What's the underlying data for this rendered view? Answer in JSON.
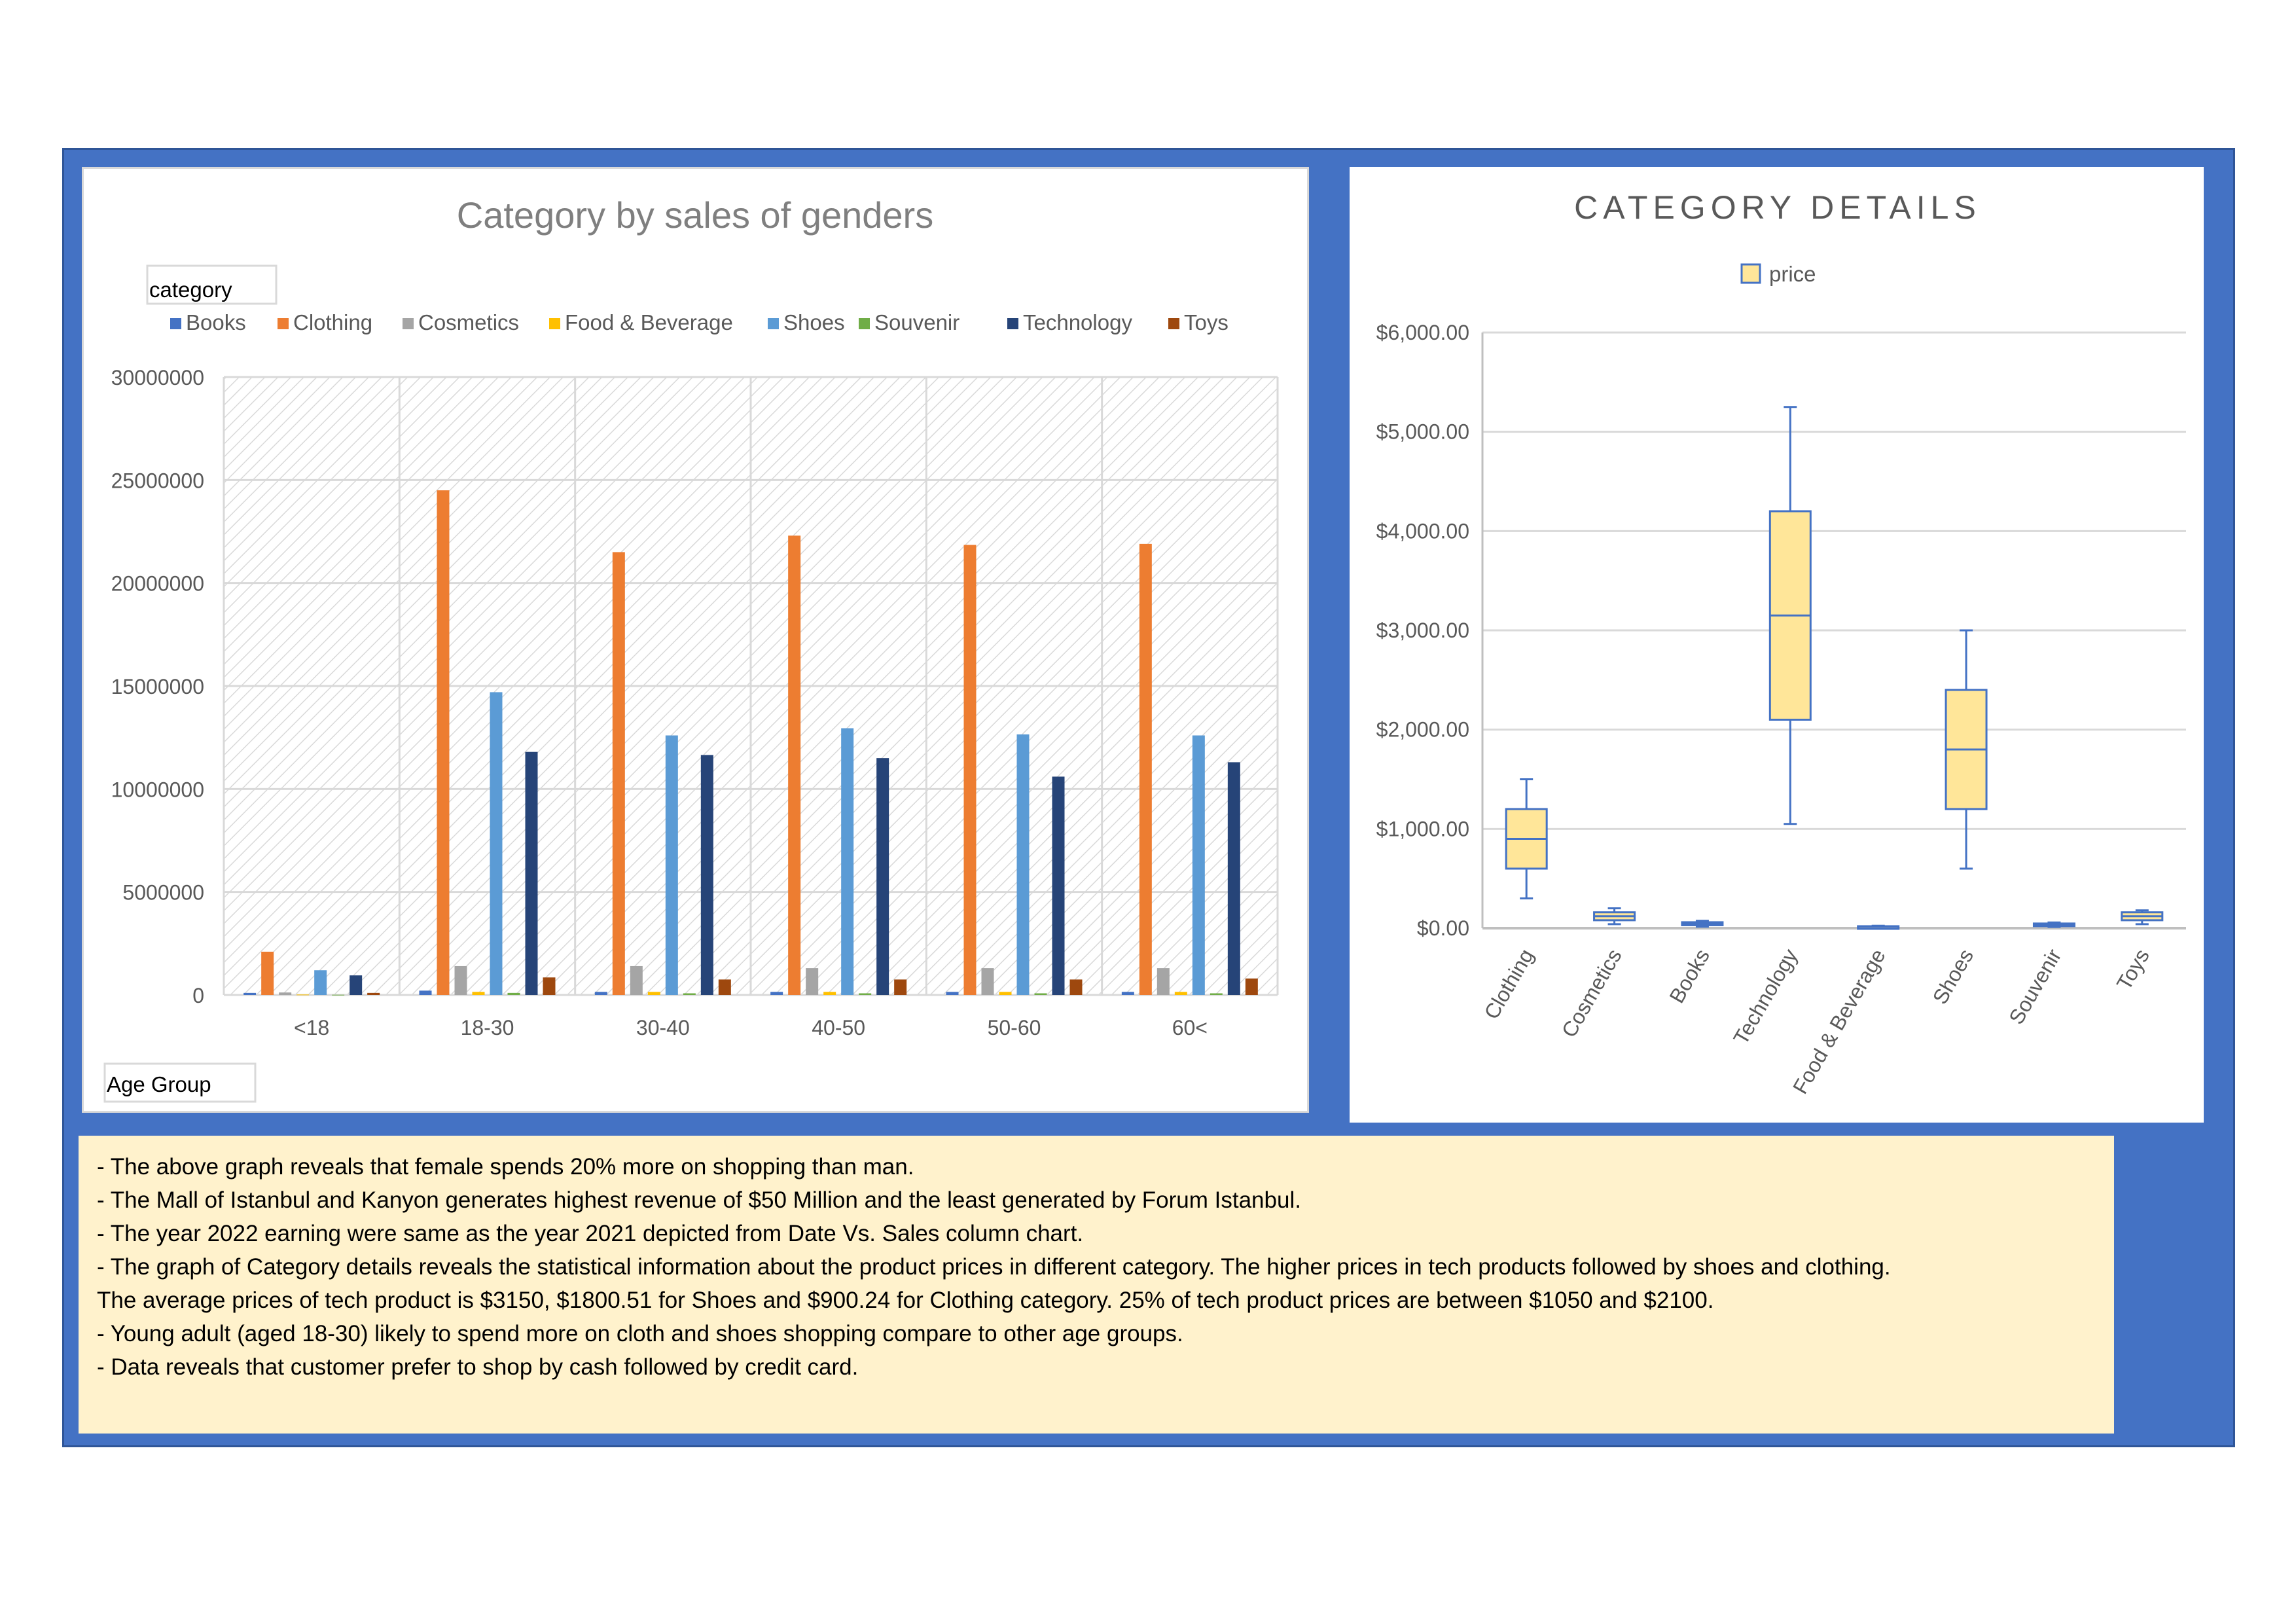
{
  "colors": {
    "frame": "#4472c4",
    "notes_bg": "#fff2cc",
    "box_fill": "#ffe699",
    "box_stroke": "#4472c4"
  },
  "chart_data": [
    {
      "type": "bar",
      "title": "Category by sales of genders",
      "legend_title": "category",
      "legend_placement": "top",
      "xlabel": "Age Group",
      "ylabel": "",
      "ylim": [
        0,
        30000000
      ],
      "yticks": [
        0,
        5000000,
        10000000,
        15000000,
        20000000,
        25000000,
        30000000
      ],
      "grid": true,
      "categories": [
        "<18",
        "18-30",
        "30-40",
        "40-50",
        "50-60",
        "60<"
      ],
      "series": [
        {
          "name": "Books",
          "color": "#4472c4",
          "values": [
            100000,
            210000,
            150000,
            150000,
            150000,
            150000
          ]
        },
        {
          "name": "Clothing",
          "color": "#ed7d31",
          "values": [
            2100000,
            24500000,
            21500000,
            22300000,
            21850000,
            21900000
          ]
        },
        {
          "name": "Cosmetics",
          "color": "#a5a5a5",
          "values": [
            120000,
            1400000,
            1400000,
            1300000,
            1300000,
            1300000
          ]
        },
        {
          "name": "Food & Beverage",
          "color": "#ffc000",
          "values": [
            20000,
            150000,
            150000,
            150000,
            150000,
            150000
          ]
        },
        {
          "name": "Shoes",
          "color": "#5b9bd5",
          "values": [
            1200000,
            14700000,
            12600000,
            12950000,
            12650000,
            12600000
          ]
        },
        {
          "name": "Souvenir",
          "color": "#70ad47",
          "values": [
            10000,
            100000,
            80000,
            80000,
            80000,
            80000
          ]
        },
        {
          "name": "Technology",
          "color": "#264478",
          "values": [
            950000,
            11800000,
            11650000,
            11500000,
            10600000,
            11300000
          ]
        },
        {
          "name": "Toys",
          "color": "#9e480e",
          "values": [
            100000,
            850000,
            750000,
            750000,
            750000,
            800000
          ]
        }
      ]
    },
    {
      "type": "box",
      "title": "CATEGORY DETAILS",
      "legend": [
        "price"
      ],
      "legend_placement": "top",
      "ylim": [
        0,
        6000
      ],
      "yticks": [
        0,
        1000,
        2000,
        3000,
        4000,
        5000,
        6000
      ],
      "ytick_labels": [
        "$0.00",
        "$1,000.00",
        "$2,000.00",
        "$3,000.00",
        "$4,000.00",
        "$5,000.00",
        "$6,000.00"
      ],
      "grid": true,
      "categories": [
        "Clothing",
        "Cosmetics",
        "Books",
        "Technology",
        "Food & Beverage",
        "Shoes",
        "Souvenir",
        "Toys"
      ],
      "boxes": [
        {
          "min": 300,
          "q1": 600,
          "median": 900,
          "q3": 1200,
          "max": 1500
        },
        {
          "min": 40,
          "q1": 80,
          "median": 120,
          "q3": 160,
          "max": 200
        },
        {
          "min": 15,
          "q1": 30,
          "median": 45,
          "q3": 60,
          "max": 75
        },
        {
          "min": 1050,
          "q1": 2100,
          "median": 3150,
          "q3": 4200,
          "max": 5250
        },
        {
          "min": 5,
          "q1": 10,
          "median": 15,
          "q3": 20,
          "max": 25
        },
        {
          "min": 600,
          "q1": 1200,
          "median": 1800,
          "q3": 2400,
          "max": 3000
        },
        {
          "min": 12,
          "q1": 24,
          "median": 35,
          "q3": 47,
          "max": 58
        },
        {
          "min": 40,
          "q1": 80,
          "median": 120,
          "q3": 160,
          "max": 180
        }
      ]
    }
  ],
  "notes": [
    "- The above graph reveals that female spends 20% more on shopping than man.",
    "- The Mall of Istanbul and Kanyon generates highest revenue of $50 Million and the least generated by Forum Istanbul.",
    "- The year 2022 earning were same as the year 2021 depicted from Date Vs. Sales column chart.",
    "- The graph of Category details reveals the statistical information about the product prices in different category. The higher prices in tech products followed by shoes and clothing.",
    "The average prices of tech product is $3150, $1800.51 for Shoes and $900.24 for Clothing category. 25% of tech product prices are between $1050 and $2100.",
    "-  Young adult (aged 18-30) likely to spend more on cloth and shoes shopping compare to other age groups.",
    "- Data reveals that customer prefer to shop by cash followed by credit card."
  ]
}
